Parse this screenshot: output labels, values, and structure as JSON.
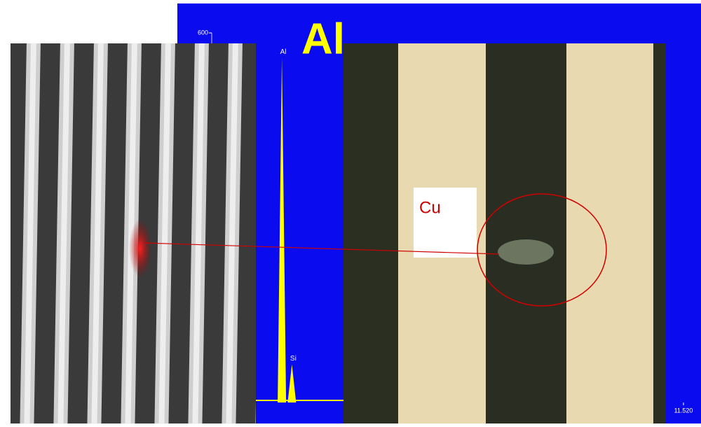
{
  "element_title": "Al",
  "spectrum": {
    "ylim": [
      0,
      600
    ],
    "yticks": [
      {
        "value": 600,
        "label": "600"
      }
    ],
    "xlim": [
      0,
      11.52
    ],
    "xticks": [
      {
        "value": 11.52,
        "label": "11.520"
      }
    ],
    "peaks": [
      {
        "label": "Al",
        "x": 1.49,
        "height": 560
      },
      {
        "label": "Si",
        "x": 1.74,
        "height": 62
      }
    ]
  },
  "callout": "Cu"
}
